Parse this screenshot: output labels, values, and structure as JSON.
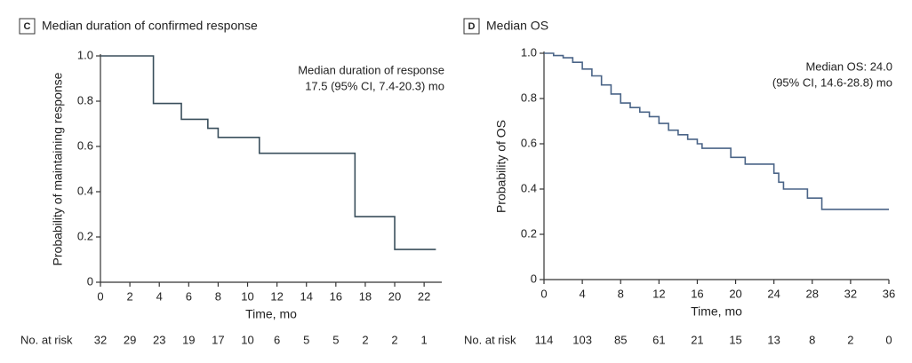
{
  "chart_data": [
    {
      "type": "line",
      "panel": "C",
      "title": "Median duration of confirmed response",
      "x_label": "Time, mo",
      "y_label": "Probability of maintaining response",
      "annotation": [
        "Median duration of response",
        "17.5 (95% CI, 7.4-20.3) mo"
      ],
      "x": [
        0,
        3.6,
        5.5,
        7.3,
        8.0,
        10.8,
        17.3,
        20.0,
        22.8
      ],
      "series": [
        {
          "color": "#3a4f5c",
          "values": [
            1.0,
            0.79,
            0.72,
            0.68,
            0.64,
            0.57,
            0.29,
            0.145,
            0.145
          ]
        }
      ],
      "step": true,
      "xlim": [
        0,
        23.2
      ],
      "xticks": [
        0,
        2,
        4,
        6,
        8,
        10,
        12,
        14,
        16,
        18,
        20,
        22
      ],
      "ylim": [
        0,
        1.0
      ],
      "yticks": [
        0,
        {
          "value": 0.2,
          "label": "0.2"
        },
        {
          "value": 0.4,
          "label": "0.4"
        },
        {
          "value": 0.6,
          "label": "0.6"
        },
        {
          "value": 0.8,
          "label": "0.8"
        },
        {
          "value": 1.0,
          "label": "1.0"
        }
      ],
      "at_risk": {
        "label": "No. at risk",
        "x": [
          0,
          2,
          4,
          6,
          8,
          10,
          12,
          14,
          16,
          18,
          20,
          22
        ],
        "values": [
          32,
          29,
          23,
          19,
          17,
          10,
          6,
          5,
          5,
          2,
          2,
          1
        ]
      }
    },
    {
      "type": "line",
      "panel": "D",
      "title": "Median OS",
      "x_label": "Time, mo",
      "y_label": "Probability of OS",
      "annotation": [
        "Median OS: 24.0",
        "(95% CI, 14.6-28.8) mo"
      ],
      "x": [
        0,
        1,
        2,
        3,
        4,
        5,
        6,
        7,
        8,
        9,
        10,
        11,
        12,
        13,
        14,
        15,
        16,
        16.5,
        19.5,
        21,
        24,
        24.5,
        25,
        27.5,
        29,
        36
      ],
      "series": [
        {
          "color": "#4a6487",
          "values": [
            1.0,
            0.99,
            0.98,
            0.96,
            0.93,
            0.9,
            0.86,
            0.82,
            0.78,
            0.76,
            0.74,
            0.72,
            0.69,
            0.66,
            0.64,
            0.62,
            0.6,
            0.58,
            0.54,
            0.51,
            0.47,
            0.43,
            0.4,
            0.36,
            0.31,
            0.31
          ]
        }
      ],
      "step": true,
      "xlim": [
        0,
        36
      ],
      "xticks": [
        0,
        4,
        8,
        12,
        16,
        20,
        24,
        28,
        32,
        36
      ],
      "ylim": [
        0,
        1.0
      ],
      "yticks": [
        0,
        {
          "value": 0.2,
          "label": "0.2"
        },
        {
          "value": 0.4,
          "label": "0.4"
        },
        {
          "value": 0.6,
          "label": "0.6"
        },
        {
          "value": 0.8,
          "label": "0.8"
        },
        {
          "value": 1.0,
          "label": "1.0"
        }
      ],
      "at_risk": {
        "label": "No. at risk",
        "x": [
          0,
          4,
          8,
          12,
          16,
          20,
          24,
          28,
          32,
          36
        ],
        "values": [
          114,
          103,
          85,
          61,
          21,
          15,
          13,
          8,
          2,
          0
        ]
      }
    }
  ]
}
